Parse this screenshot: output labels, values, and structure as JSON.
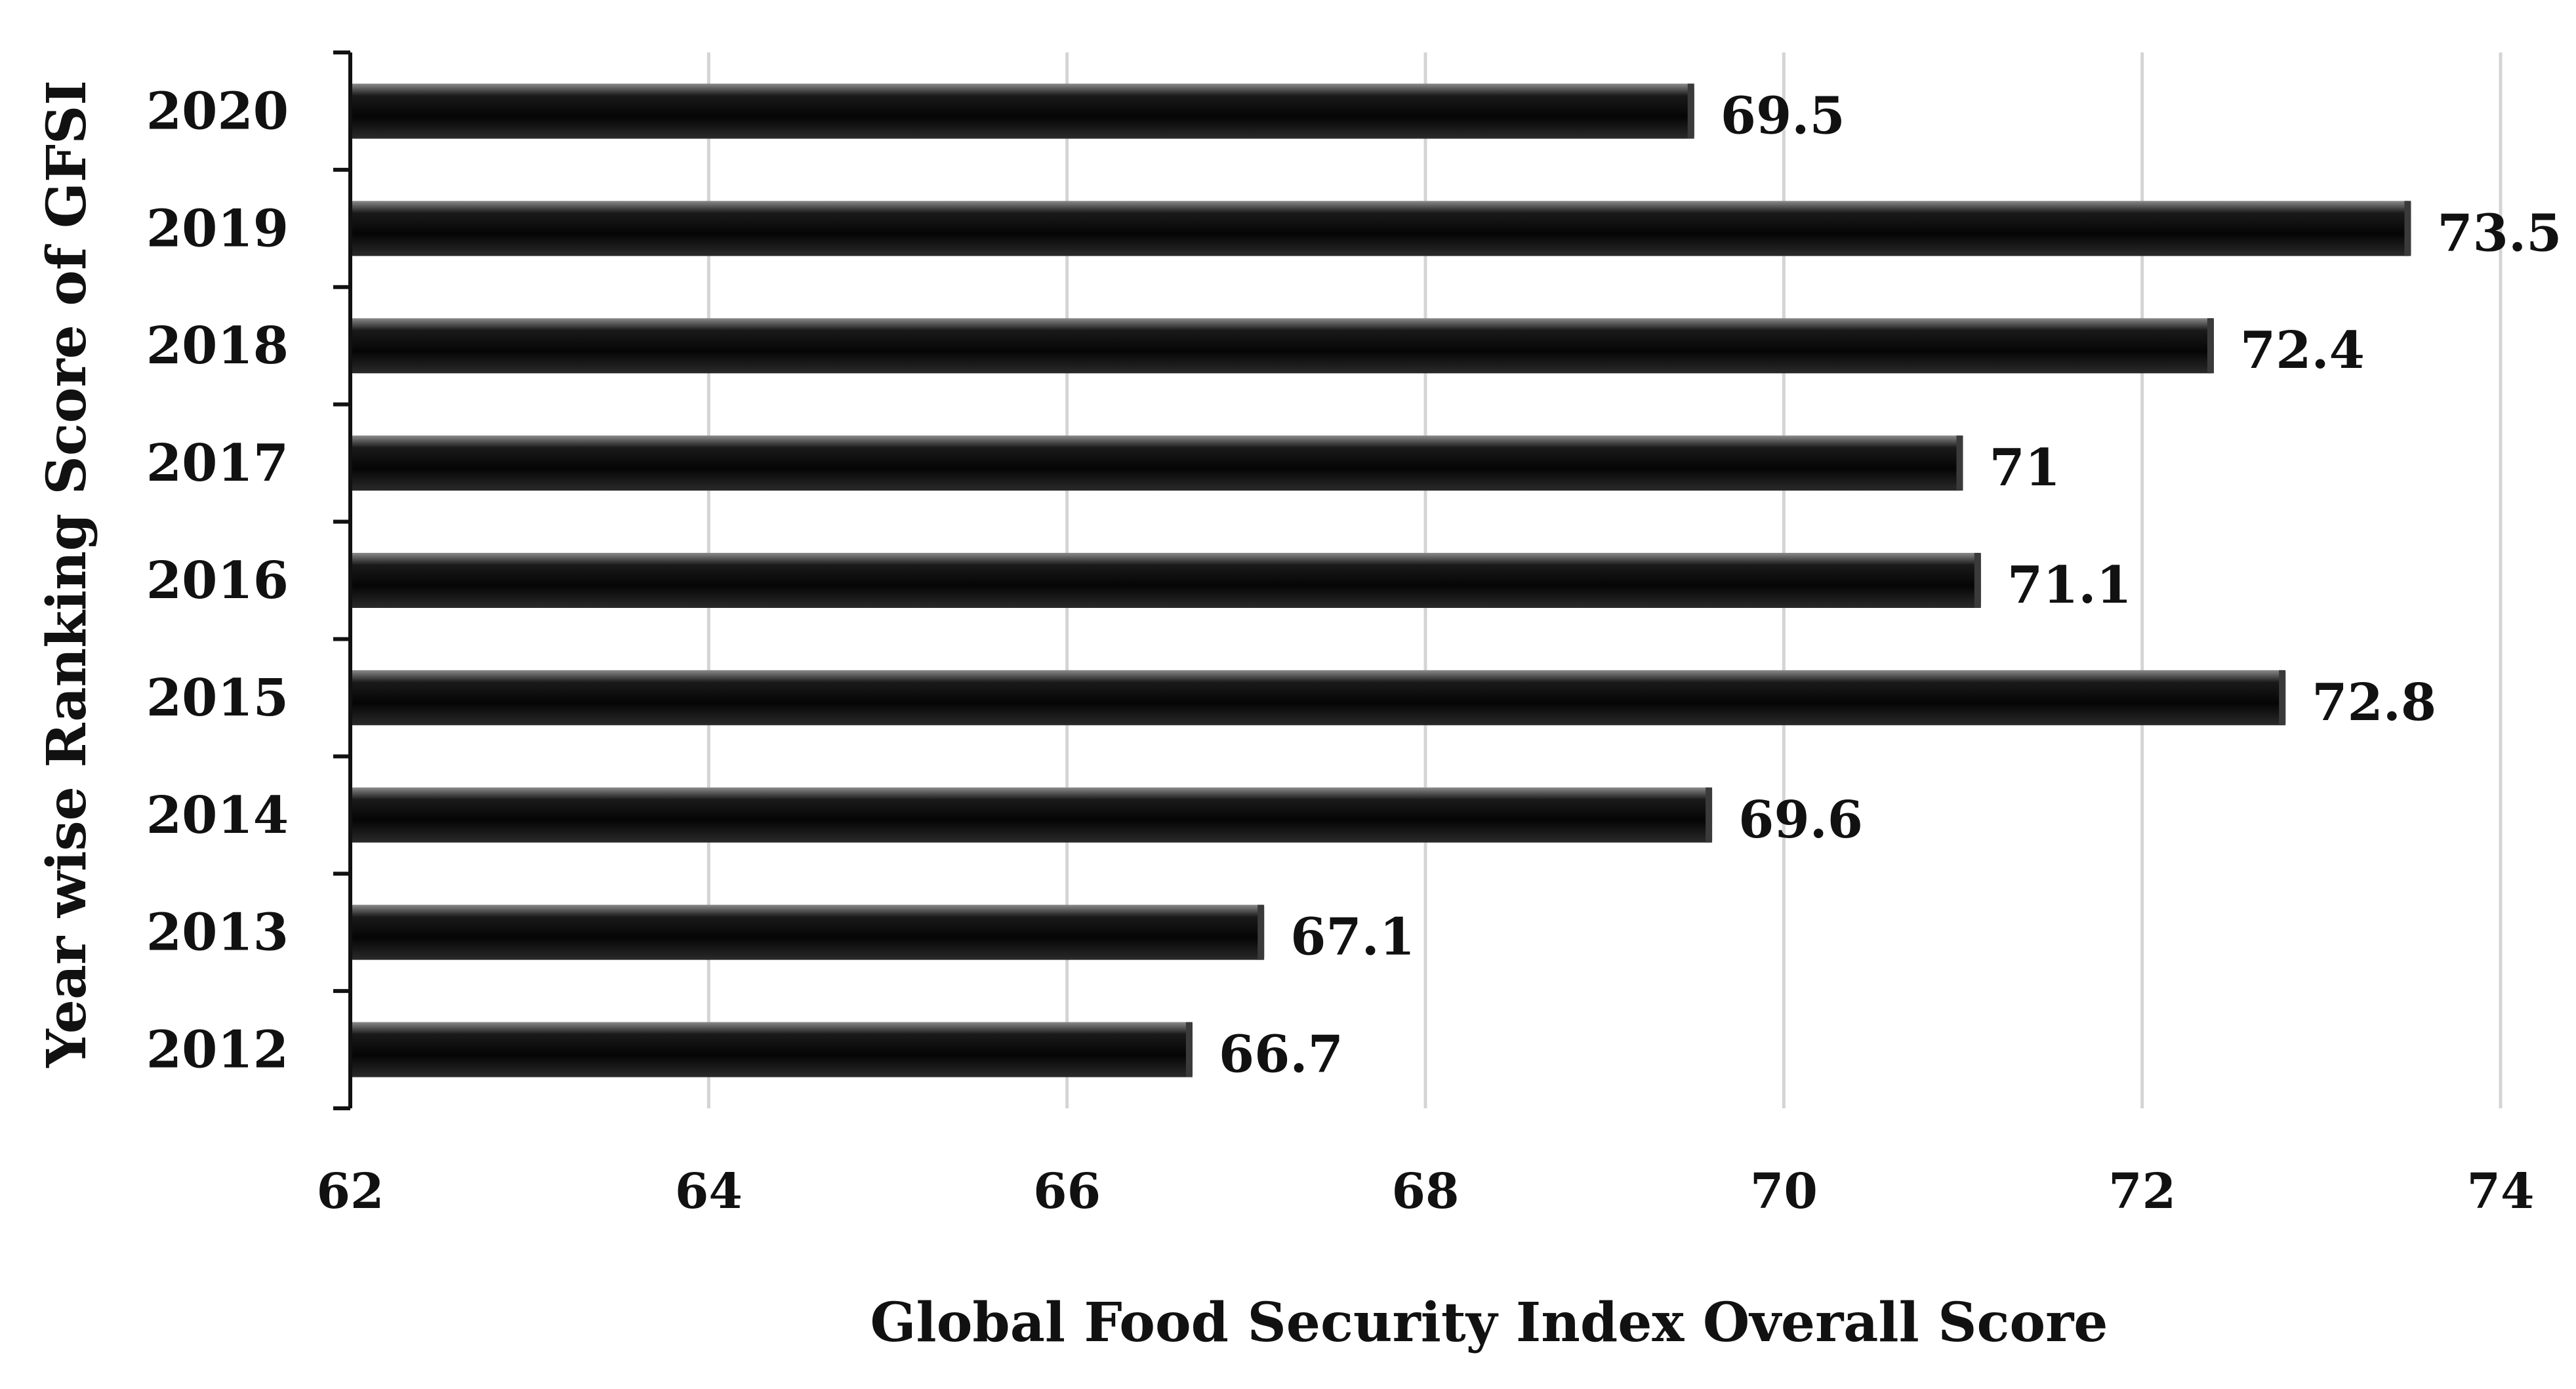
{
  "chart_data": {
    "type": "bar",
    "orientation": "horizontal",
    "categories": [
      "2020",
      "2019",
      "2018",
      "2017",
      "2016",
      "2015",
      "2014",
      "2013",
      "2012"
    ],
    "values": [
      69.5,
      73.5,
      72.4,
      71,
      71.1,
      72.8,
      69.6,
      67.1,
      66.7
    ],
    "value_labels": [
      "69.5",
      "73.5",
      "72.4",
      "71",
      "71.1",
      "72.8",
      "69.6",
      "67.1",
      "66.7"
    ],
    "xlabel": "Global Food Security Index Overall Score",
    "ylabel": "Year wise Ranking Score of GFSI",
    "xlim": [
      62,
      74
    ],
    "xticks": [
      "62",
      "64",
      "66",
      "68",
      "70",
      "72",
      "74"
    ],
    "grid": "vertical",
    "legend": "none",
    "bar_color": "#0a0a0a",
    "bar_highlight": "#7a7a7a"
  }
}
